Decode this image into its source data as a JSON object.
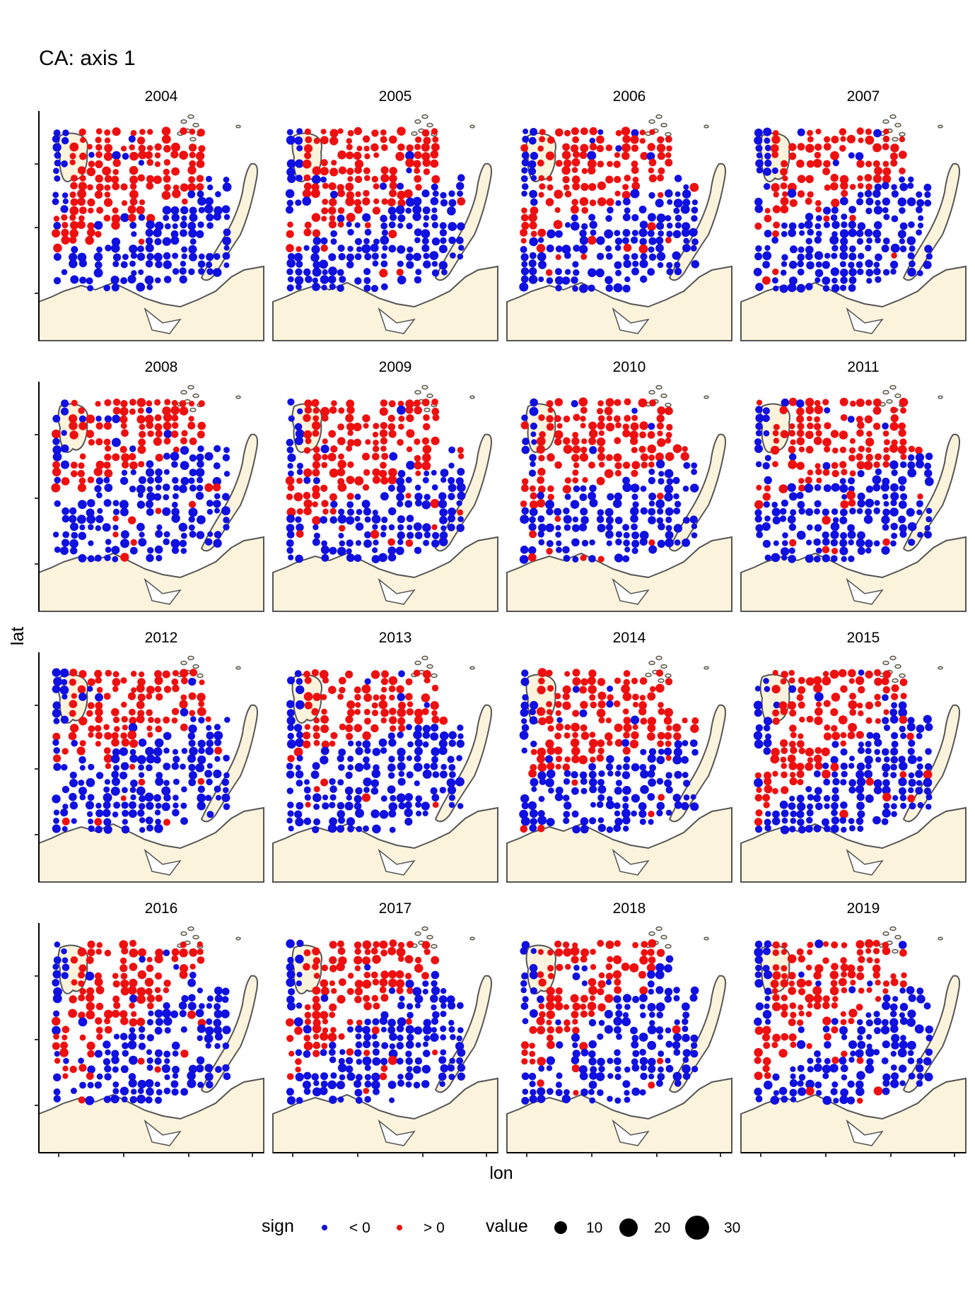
{
  "chart_data": {
    "type": "scatter",
    "title": "CA: axis 1",
    "xlabel": "lon",
    "ylabel": "lat",
    "panels": [
      "2004",
      "2005",
      "2006",
      "2007",
      "2008",
      "2009",
      "2010",
      "2011",
      "2012",
      "2013",
      "2014",
      "2015",
      "2016",
      "2017",
      "2018",
      "2019"
    ],
    "legend": {
      "sign": {
        "title": "sign",
        "entries": [
          {
            "label": "< 0",
            "color": "#1010e0"
          },
          {
            "label": "> 0",
            "color": "#ee1010"
          }
        ]
      },
      "value": {
        "title": "value",
        "entries": [
          {
            "label": "10",
            "size": 10
          },
          {
            "label": "20",
            "size": 20
          },
          {
            "label": "30",
            "size": 30
          }
        ]
      }
    },
    "colors": {
      "negative": "#1010e0",
      "positive": "#ee1010",
      "land": "#fbf3dc",
      "coast": "#555555"
    }
  }
}
